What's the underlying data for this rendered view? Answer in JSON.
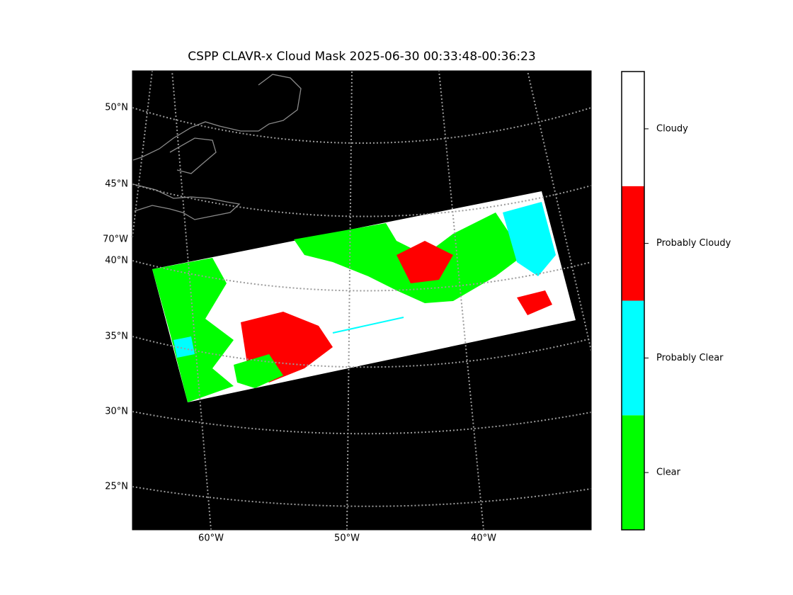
{
  "title": "CSPP CLAVR-x Cloud Mask 2025-06-30 00:33:48-00:36:23",
  "map": {
    "lat_labels": [
      "50°N",
      "45°N",
      "70°W",
      "40°N",
      "35°N",
      "30°N",
      "25°N"
    ],
    "lon_labels": [
      "60°W",
      "50°W",
      "40°W"
    ]
  },
  "colorbar": {
    "categories": [
      {
        "label": "Clear",
        "color": "#00ff00"
      },
      {
        "label": "Probably Clear",
        "color": "#00ffff"
      },
      {
        "label": "Probably Cloudy",
        "color": "#ff0000"
      },
      {
        "label": "Cloudy",
        "color": "#ffffff"
      }
    ]
  }
}
